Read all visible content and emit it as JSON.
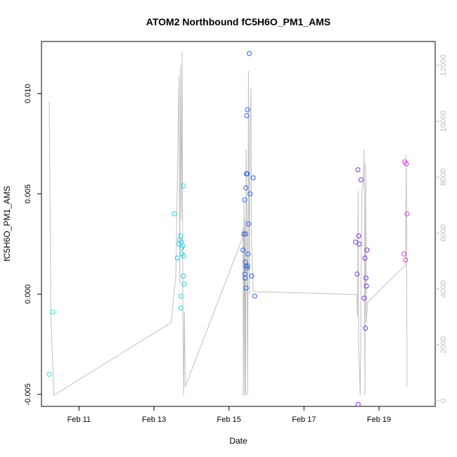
{
  "chart_data": {
    "type": "scatter",
    "title": "ATOM2 Northbound fC5H6O_PM1_AMS",
    "xlabel": "Date",
    "ylabel": "fC5H6O_PM1_AMS",
    "x_range": [
      "2016-02-10 00:00",
      "2016-02-20 12:00"
    ],
    "x_ticks": [
      {
        "date": "2016-02-11 00:00",
        "label": "Feb 11"
      },
      {
        "date": "2016-02-13 00:00",
        "label": "Feb 13"
      },
      {
        "date": "2016-02-15 00:00",
        "label": "Feb 15"
      },
      {
        "date": "2016-02-17 00:00",
        "label": "Feb 17"
      },
      {
        "date": "2016-02-19 00:00",
        "label": "Feb 19"
      }
    ],
    "ylim": [
      -0.0056,
      0.0126
    ],
    "y_ticks": [
      -0.005,
      0.0,
      0.005,
      0.01
    ],
    "y_tick_labels": [
      "-0.005",
      "0.000",
      "0.005",
      "0.010"
    ],
    "y2lim": [
      -200,
      12850
    ],
    "y2_ticks": [
      0,
      2000,
      4000,
      6000,
      8000,
      10000,
      12000
    ],
    "y2_tick_labels": [
      "0",
      "2000",
      "4000",
      "6000",
      "8000",
      "10000",
      "12000"
    ],
    "grid": false,
    "legend": "none",
    "colors": {
      "altitude_line": "#c0c0c0",
      "axis": "#000000",
      "secondary_axis": "#bdbdbd"
    },
    "points": [
      {
        "x": "2016-02-10 05:00",
        "y": -0.004,
        "color": "#33e3d1"
      },
      {
        "x": "2016-02-10 07:00",
        "y": -0.0009,
        "color": "#33e3d1"
      },
      {
        "x": "2016-02-13 13:00",
        "y": 0.004,
        "color": "#24cfe3"
      },
      {
        "x": "2016-02-13 15:00",
        "y": 0.0018,
        "color": "#24cfe3"
      },
      {
        "x": "2016-02-13 16:00",
        "y": 0.0025,
        "color": "#24cfe3"
      },
      {
        "x": "2016-02-13 16:30",
        "y": 0.0027,
        "color": "#24cfe3"
      },
      {
        "x": "2016-02-13 17:00",
        "y": 0.0029,
        "color": "#24cfe3"
      },
      {
        "x": "2016-02-13 17:30",
        "y": 0.0026,
        "color": "#24cfe3"
      },
      {
        "x": "2016-02-13 17:45",
        "y": 0.0023,
        "color": "#24cfe3"
      },
      {
        "x": "2016-02-13 18:00",
        "y": 0.002,
        "color": "#24cfe3"
      },
      {
        "x": "2016-02-13 18:30",
        "y": 0.0024,
        "color": "#24cfe3"
      },
      {
        "x": "2016-02-13 19:00",
        "y": 0.0019,
        "color": "#24cfe3"
      },
      {
        "x": "2016-02-13 17:15",
        "y": -0.0001,
        "color": "#24cfe3"
      },
      {
        "x": "2016-02-13 17:10",
        "y": -0.0007,
        "color": "#24cfe3"
      },
      {
        "x": "2016-02-13 18:45",
        "y": 0.0009,
        "color": "#24cfe3"
      },
      {
        "x": "2016-02-13 19:15",
        "y": 0.0005,
        "color": "#24cfe3"
      },
      {
        "x": "2016-02-13 18:50",
        "y": 0.0054,
        "color": "#24cfe3"
      },
      {
        "x": "2016-02-15 09:00",
        "y": 0.0022,
        "color": "#2a5ce8"
      },
      {
        "x": "2016-02-15 09:30",
        "y": 0.003,
        "color": "#2a5ce8"
      },
      {
        "x": "2016-02-15 10:00",
        "y": 0.0047,
        "color": "#2a5ce8"
      },
      {
        "x": "2016-02-15 10:15",
        "y": 0.001,
        "color": "#2a5ce8"
      },
      {
        "x": "2016-02-15 10:20",
        "y": 0.0008,
        "color": "#2a5ce8"
      },
      {
        "x": "2016-02-15 10:30",
        "y": 0.0016,
        "color": "#2a5ce8"
      },
      {
        "x": "2016-02-15 10:40",
        "y": 0.003,
        "color": "#2a5ce8"
      },
      {
        "x": "2016-02-15 10:45",
        "y": 0.0053,
        "color": "#2a5ce8"
      },
      {
        "x": "2016-02-15 10:50",
        "y": 0.0014,
        "color": "#2a5ce8"
      },
      {
        "x": "2016-02-15 11:00",
        "y": 0.0003,
        "color": "#2a5ce8"
      },
      {
        "x": "2016-02-15 11:10",
        "y": 0.006,
        "color": "#2a5ce8"
      },
      {
        "x": "2016-02-15 11:20",
        "y": 0.0089,
        "color": "#2a5ce8"
      },
      {
        "x": "2016-02-15 11:30",
        "y": 0.0013,
        "color": "#2a5ce8"
      },
      {
        "x": "2016-02-15 11:40",
        "y": 0.006,
        "color": "#2a5ce8"
      },
      {
        "x": "2016-02-15 11:50",
        "y": 0.0092,
        "color": "#2a5ce8"
      },
      {
        "x": "2016-02-15 12:00",
        "y": 0.0014,
        "color": "#2a5ce8"
      },
      {
        "x": "2016-02-15 12:10",
        "y": 0.002,
        "color": "#2a5ce8"
      },
      {
        "x": "2016-02-15 12:30",
        "y": 0.0035,
        "color": "#2a5ce8"
      },
      {
        "x": "2016-02-15 13:00",
        "y": 0.012,
        "color": "#2a5ce8"
      },
      {
        "x": "2016-02-15 13:30",
        "y": 0.005,
        "color": "#2a5ce8"
      },
      {
        "x": "2016-02-15 14:30",
        "y": 0.0009,
        "color": "#2a5ce8"
      },
      {
        "x": "2016-02-15 15:30",
        "y": 0.0058,
        "color": "#2a5ce8"
      },
      {
        "x": "2016-02-15 16:30",
        "y": -0.0001,
        "color": "#2a5ce8"
      },
      {
        "x": "2016-02-18 09:00",
        "y": 0.0026,
        "color": "#7d2fe0"
      },
      {
        "x": "2016-02-18 10:00",
        "y": 0.001,
        "color": "#7d2fe0"
      },
      {
        "x": "2016-02-18 10:30",
        "y": 0.0062,
        "color": "#7d2fe0"
      },
      {
        "x": "2016-02-18 11:00",
        "y": 0.0029,
        "color": "#7d2fe0"
      },
      {
        "x": "2016-02-18 11:20",
        "y": 0.0025,
        "color": "#7d2fe0"
      },
      {
        "x": "2016-02-18 10:40",
        "y": -0.0055,
        "color": "#7d2fe0"
      },
      {
        "x": "2016-02-18 12:30",
        "y": 0.0057,
        "color": "#7d2fe0"
      },
      {
        "x": "2016-02-18 14:30",
        "y": -0.0002,
        "color": "#7d2fe0"
      },
      {
        "x": "2016-02-18 15:00",
        "y": 0.0018,
        "color": "#7d2fe0"
      },
      {
        "x": "2016-02-18 15:20",
        "y": -0.0017,
        "color": "#7d2fe0"
      },
      {
        "x": "2016-02-18 15:40",
        "y": 0.0008,
        "color": "#7d2fe0"
      },
      {
        "x": "2016-02-18 16:00",
        "y": 0.0004,
        "color": "#7d2fe0"
      },
      {
        "x": "2016-02-18 16:20",
        "y": 0.0022,
        "color": "#7d2fe0"
      },
      {
        "x": "2016-02-19 16:30",
        "y": 0.0066,
        "color": "#d43ad6"
      },
      {
        "x": "2016-02-19 17:30",
        "y": 0.0065,
        "color": "#d43ad6"
      },
      {
        "x": "2016-02-19 16:00",
        "y": 0.002,
        "color": "#d43ad6"
      },
      {
        "x": "2016-02-19 17:00",
        "y": 0.0017,
        "color": "#d43ad6"
      },
      {
        "x": "2016-02-19 18:00",
        "y": 0.004,
        "color": "#d43ad6"
      }
    ],
    "altitude_series": {
      "axis": "right",
      "x": [
        "2016-02-10 05:00",
        "2016-02-10 06:00",
        "2016-02-10 08:00",
        "2016-02-13 11:00",
        "2016-02-13 14:00",
        "2016-02-13 16:00",
        "2016-02-13 16:30",
        "2016-02-13 17:00",
        "2016-02-13 17:30",
        "2016-02-13 18:00",
        "2016-02-13 18:30",
        "2016-02-13 19:00",
        "2016-02-13 19:30",
        "2016-02-13 20:00",
        "2016-02-15 08:30",
        "2016-02-15 09:00",
        "2016-02-15 09:10",
        "2016-02-15 09:30",
        "2016-02-15 09:40",
        "2016-02-15 10:00",
        "2016-02-15 10:10",
        "2016-02-15 10:30",
        "2016-02-15 10:40",
        "2016-02-15 11:00",
        "2016-02-15 11:30",
        "2016-02-15 12:00",
        "2016-02-15 12:30",
        "2016-02-15 13:00",
        "2016-02-15 13:30",
        "2016-02-15 14:00",
        "2016-02-15 14:30",
        "2016-02-15 15:30",
        "2016-02-15 16:00",
        "2016-02-15 17:00",
        "2016-02-18 09:00",
        "2016-02-18 09:30",
        "2016-02-18 10:00",
        "2016-02-18 10:20",
        "2016-02-18 10:40",
        "2016-02-18 11:00",
        "2016-02-18 12:00",
        "2016-02-18 13:00",
        "2016-02-18 14:00",
        "2016-02-18 14:30",
        "2016-02-18 15:00",
        "2016-02-18 15:30",
        "2016-02-18 16:00",
        "2016-02-18 16:30",
        "2016-02-19 16:00",
        "2016-02-19 17:00",
        "2016-02-19 17:30",
        "2016-02-19 18:00"
      ],
      "y": [
        10700,
        3000,
        200,
        2800,
        4500,
        11600,
        4200,
        12000,
        6500,
        12500,
        3500,
        200,
        3200,
        500,
        5800,
        6200,
        200,
        5800,
        7200,
        200,
        6500,
        2000,
        200,
        9000,
        6000,
        200,
        11800,
        3800,
        9800,
        11200,
        5500,
        4000,
        3900,
        3900,
        3800,
        3800,
        3500,
        3000,
        7500,
        2000,
        200,
        7500,
        7800,
        9000,
        200,
        8500,
        2800,
        3500,
        4800,
        4800,
        8800,
        500
      ]
    }
  }
}
